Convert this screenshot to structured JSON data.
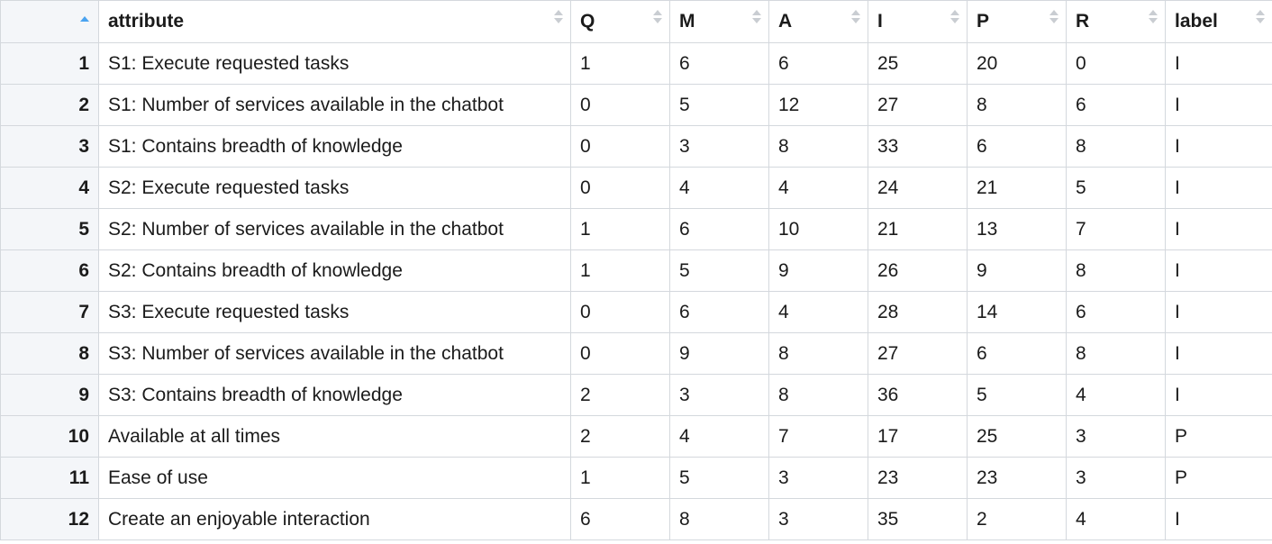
{
  "accent_color": "#4aa3f0",
  "table": {
    "columns": [
      "attribute",
      "Q",
      "M",
      "A",
      "I",
      "P",
      "R",
      "label"
    ],
    "rows": [
      {
        "n": "1",
        "attribute": "S1: Execute requested tasks",
        "Q": "1",
        "M": "6",
        "A": "6",
        "I": "25",
        "P": "20",
        "R": "0",
        "label": "I"
      },
      {
        "n": "2",
        "attribute": "S1: Number of services available in the chatbot",
        "Q": "0",
        "M": "5",
        "A": "12",
        "I": "27",
        "P": "8",
        "R": "6",
        "label": "I"
      },
      {
        "n": "3",
        "attribute": "S1: Contains breadth of knowledge",
        "Q": "0",
        "M": "3",
        "A": "8",
        "I": "33",
        "P": "6",
        "R": "8",
        "label": "I"
      },
      {
        "n": "4",
        "attribute": "S2: Execute requested tasks",
        "Q": "0",
        "M": "4",
        "A": "4",
        "I": "24",
        "P": "21",
        "R": "5",
        "label": "I"
      },
      {
        "n": "5",
        "attribute": "S2: Number of services available in the chatbot",
        "Q": "1",
        "M": "6",
        "A": "10",
        "I": "21",
        "P": "13",
        "R": "7",
        "label": "I"
      },
      {
        "n": "6",
        "attribute": "S2: Contains breadth of knowledge",
        "Q": "1",
        "M": "5",
        "A": "9",
        "I": "26",
        "P": "9",
        "R": "8",
        "label": "I"
      },
      {
        "n": "7",
        "attribute": "S3: Execute requested tasks",
        "Q": "0",
        "M": "6",
        "A": "4",
        "I": "28",
        "P": "14",
        "R": "6",
        "label": "I"
      },
      {
        "n": "8",
        "attribute": "S3: Number of services available in the chatbot",
        "Q": "0",
        "M": "9",
        "A": "8",
        "I": "27",
        "P": "6",
        "R": "8",
        "label": "I"
      },
      {
        "n": "9",
        "attribute": "S3: Contains breadth of knowledge",
        "Q": "2",
        "M": "3",
        "A": "8",
        "I": "36",
        "P": "5",
        "R": "4",
        "label": "I"
      },
      {
        "n": "10",
        "attribute": "Available at all times",
        "Q": "2",
        "M": "4",
        "A": "7",
        "I": "17",
        "P": "25",
        "R": "3",
        "label": "P"
      },
      {
        "n": "11",
        "attribute": "Ease of use",
        "Q": "1",
        "M": "5",
        "A": "3",
        "I": "23",
        "P": "23",
        "R": "3",
        "label": "P"
      },
      {
        "n": "12",
        "attribute": "Create an enjoyable interaction",
        "Q": "6",
        "M": "8",
        "A": "3",
        "I": "35",
        "P": "2",
        "R": "4",
        "label": "I"
      }
    ]
  }
}
